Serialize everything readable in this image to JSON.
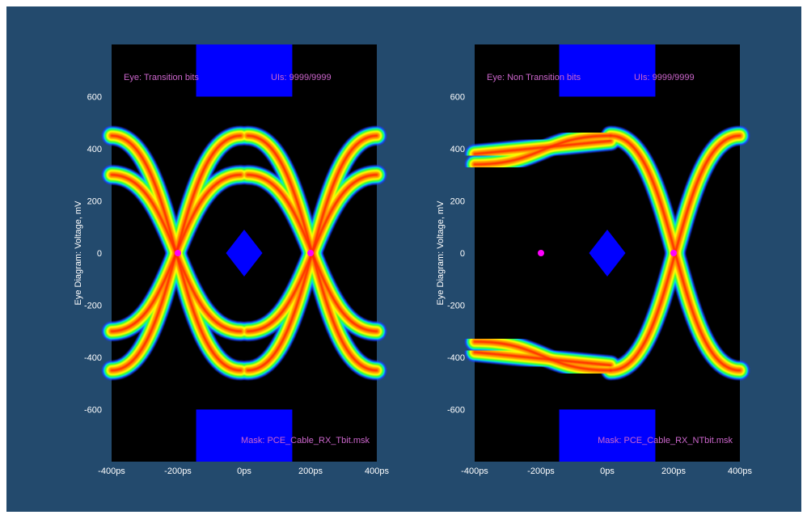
{
  "colors": {
    "background": "#234a6d",
    "plot_bg": "#000000",
    "mask": "#0000ff",
    "annotation": "#cc66cc",
    "crossing_marker": "#ff00ff",
    "tick_text": "#ffffff"
  },
  "chart_data": [
    {
      "type": "heatmap",
      "subtype": "eye-diagram",
      "ylabel": "Eye Diagram: Voltage, mV",
      "xlabel": "",
      "xlim": [
        -400,
        400
      ],
      "ylim": [
        -800,
        800
      ],
      "x_tick_labels": [
        "-400ps",
        "-200ps",
        "0ps",
        "200ps",
        "400ps"
      ],
      "y_ticks": [
        600,
        400,
        200,
        0,
        -200,
        -400,
        -600
      ],
      "annotations": {
        "eye": "Eye: Transition bits",
        "uis": "UIs: 9999/9999",
        "mask": "Mask: PCE_Cable_RX_Tbit.msk"
      },
      "eye_levels": {
        "high_mV": 450,
        "low_mV": -450,
        "mid_high_mV": 300,
        "mid_low_mV": -300
      },
      "crossings_ps": [
        -200,
        200
      ],
      "mask": {
        "top_band": {
          "x": [
            -145,
            145
          ],
          "y": [
            600,
            800
          ]
        },
        "bottom_band": {
          "x": [
            -145,
            145
          ],
          "y": [
            -800,
            -600
          ]
        },
        "diamond": {
          "center_ps": 0,
          "half_width_ps": 55,
          "half_height_mV": 90
        }
      },
      "crossing_markers": [
        {
          "x": -200,
          "y": 0
        },
        {
          "x": 200,
          "y": 0
        }
      ]
    },
    {
      "type": "heatmap",
      "subtype": "eye-diagram",
      "ylabel": "Eye Diagram: Voltage, mV",
      "xlabel": "",
      "xlim": [
        -400,
        400
      ],
      "ylim": [
        -800,
        800
      ],
      "x_tick_labels": [
        "-400ps",
        "-200ps",
        "0ps",
        "200ps",
        "400ps"
      ],
      "y_ticks": [
        600,
        400,
        200,
        0,
        -200,
        -400,
        -600
      ],
      "annotations": {
        "eye": "Eye: Non Transition bits",
        "uis": "UIs: 9999/9999",
        "mask": "Mask: PCE_Cable_RX_NTbit.msk"
      },
      "eye_levels": {
        "high_mV": 450,
        "low_mV": -450
      },
      "crossings_ps": [
        200
      ],
      "mask": {
        "top_band": {
          "x": [
            -145,
            145
          ],
          "y": [
            600,
            800
          ]
        },
        "bottom_band": {
          "x": [
            -145,
            145
          ],
          "y": [
            -800,
            -600
          ]
        },
        "diamond": {
          "center_ps": 0,
          "half_width_ps": 55,
          "half_height_mV": 90
        }
      },
      "crossing_markers": [
        {
          "x": -200,
          "y": 0
        },
        {
          "x": 200,
          "y": 0
        }
      ]
    }
  ]
}
